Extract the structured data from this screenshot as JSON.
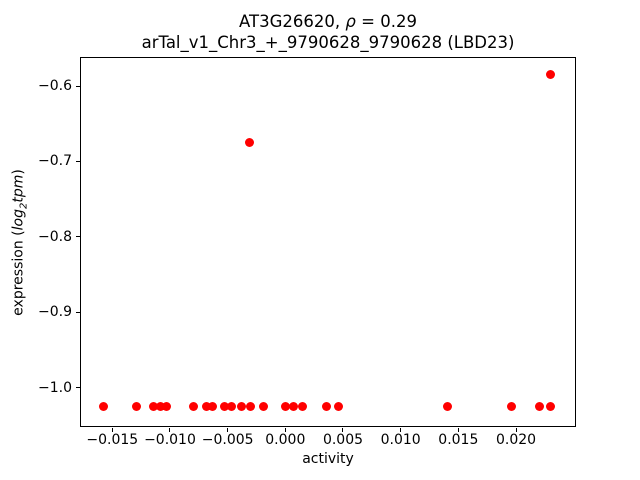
{
  "figure": {
    "title_gene": "AT3G26620, ",
    "title_rho": "ρ",
    "title_eq": " = 0.29",
    "subtitle": "arTal_v1_Chr3_+_9790628_9790628 (LBD23)",
    "xlabel": "activity",
    "ylabel_pre": "expression (",
    "ylabel_log": "log",
    "ylabel_sub": "2",
    "ylabel_var": "tpm",
    "ylabel_post": ")"
  },
  "chart_data": {
    "type": "scatter",
    "title": "AT3G26620, ρ = 0.29",
    "subtitle": "arTal_v1_Chr3_+_9790628_9790628 (LBD23)",
    "xlabel": "activity",
    "ylabel": "expression (log2 tpm)",
    "marker_color": "#ff0000",
    "marker_size_px": 9,
    "background": "#ffffff",
    "grid": false,
    "legend": null,
    "xlim": [
      -0.0178,
      0.0252
    ],
    "ylim": [
      -1.0525,
      -0.5622
    ],
    "xticks": {
      "values": [
        -0.015,
        -0.01,
        -0.005,
        0.0,
        0.005,
        0.01,
        0.015,
        0.02
      ],
      "labels": [
        "−0.015",
        "−0.010",
        "−0.005",
        "0.000",
        "0.005",
        "0.010",
        "0.015",
        "0.020"
      ]
    },
    "yticks": {
      "values": [
        -1.0,
        -0.9,
        -0.8,
        -0.7,
        -0.6
      ],
      "labels": [
        "−1.0",
        "−0.9",
        "−0.8",
        "−0.7",
        "−0.6"
      ]
    },
    "points": [
      [
        -0.0158,
        -1.025
      ],
      [
        -0.0129,
        -1.025
      ],
      [
        -0.0114,
        -1.025
      ],
      [
        -0.0108,
        -1.025
      ],
      [
        -0.0103,
        -1.025
      ],
      [
        -0.008,
        -1.025
      ],
      [
        -0.0068,
        -1.025
      ],
      [
        -0.0063,
        -1.025
      ],
      [
        -0.0053,
        -1.025
      ],
      [
        -0.0047,
        -1.025
      ],
      [
        -0.0038,
        -1.025
      ],
      [
        -0.003,
        -1.025
      ],
      [
        -0.0019,
        -1.025
      ],
      [
        0.0,
        -1.025
      ],
      [
        0.0007,
        -1.025
      ],
      [
        0.0015,
        -1.025
      ],
      [
        0.0036,
        -1.025
      ],
      [
        0.0046,
        -1.025
      ],
      [
        0.0141,
        -1.025
      ],
      [
        0.0196,
        -1.025
      ],
      [
        0.022,
        -1.025
      ],
      [
        0.023,
        -1.025
      ],
      [
        -0.0031,
        -0.675
      ],
      [
        0.023,
        -0.585
      ]
    ]
  }
}
